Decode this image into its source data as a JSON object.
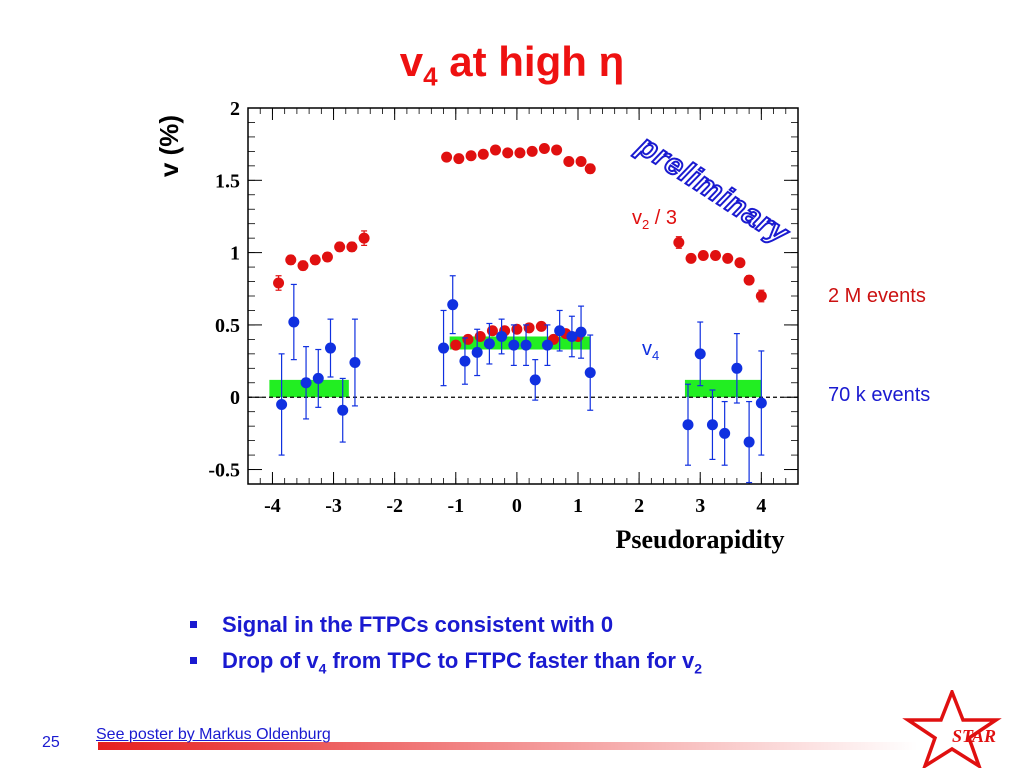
{
  "title": {
    "main": "v",
    "sub": "4",
    "tail": " at high η"
  },
  "chart_data": {
    "type": "scatter",
    "xlabel": "Pseudorapidity",
    "ylabel": "v (%)",
    "xlim": [
      -4.4,
      4.6
    ],
    "ylim": [
      -0.6,
      2.0
    ],
    "x_ticks": [
      -4,
      -3,
      -2,
      -1,
      0,
      1,
      2,
      3,
      4
    ],
    "y_ticks": [
      -0.5,
      0,
      0.5,
      1,
      1.5,
      2
    ],
    "x_tick_labels": [
      "-4",
      "-3",
      "-2",
      "-1",
      "0",
      "1",
      "2",
      "3",
      "4"
    ],
    "y_tick_labels": [
      "-0.5",
      "0",
      "0.5",
      "1",
      "1.5",
      "2"
    ],
    "zero_line": true,
    "watermark": "preliminary",
    "series": [
      {
        "name": "v2 / 3",
        "color": "#e01010",
        "points": [
          {
            "x": -3.9,
            "y": 0.79,
            "err": 0.05
          },
          {
            "x": -3.7,
            "y": 0.95,
            "err": 0.03
          },
          {
            "x": -3.5,
            "y": 0.91,
            "err": 0.03
          },
          {
            "x": -3.3,
            "y": 0.95,
            "err": 0.03
          },
          {
            "x": -3.1,
            "y": 0.97,
            "err": 0.03
          },
          {
            "x": -2.9,
            "y": 1.04,
            "err": 0.03
          },
          {
            "x": -2.7,
            "y": 1.04,
            "err": 0.03
          },
          {
            "x": -2.5,
            "y": 1.1,
            "err": 0.05
          },
          {
            "x": -1.15,
            "y": 1.66,
            "err": 0.02
          },
          {
            "x": -0.95,
            "y": 1.65,
            "err": 0.02
          },
          {
            "x": -0.75,
            "y": 1.67,
            "err": 0.02
          },
          {
            "x": -0.55,
            "y": 1.68,
            "err": 0.02
          },
          {
            "x": -0.35,
            "y": 1.71,
            "err": 0.02
          },
          {
            "x": -0.15,
            "y": 1.69,
            "err": 0.02
          },
          {
            "x": 0.05,
            "y": 1.69,
            "err": 0.02
          },
          {
            "x": 0.25,
            "y": 1.7,
            "err": 0.02
          },
          {
            "x": 0.45,
            "y": 1.72,
            "err": 0.02
          },
          {
            "x": 0.65,
            "y": 1.71,
            "err": 0.02
          },
          {
            "x": 0.85,
            "y": 1.63,
            "err": 0.02
          },
          {
            "x": 1.05,
            "y": 1.63,
            "err": 0.02
          },
          {
            "x": 1.2,
            "y": 1.58,
            "err": 0.03
          },
          {
            "x": 2.65,
            "y": 1.07,
            "err": 0.04
          },
          {
            "x": 2.85,
            "y": 0.96,
            "err": 0.02
          },
          {
            "x": 3.05,
            "y": 0.98,
            "err": 0.02
          },
          {
            "x": 3.25,
            "y": 0.98,
            "err": 0.02
          },
          {
            "x": 3.45,
            "y": 0.96,
            "err": 0.02
          },
          {
            "x": 3.65,
            "y": 0.93,
            "err": 0.02
          },
          {
            "x": 3.8,
            "y": 0.81,
            "err": 0.03
          },
          {
            "x": 4.0,
            "y": 0.7,
            "err": 0.04
          },
          {
            "x": -1.0,
            "y": 0.36,
            "err": 0.02
          },
          {
            "x": -0.8,
            "y": 0.4,
            "err": 0.02
          },
          {
            "x": -0.6,
            "y": 0.42,
            "err": 0.02
          },
          {
            "x": -0.4,
            "y": 0.46,
            "err": 0.02
          },
          {
            "x": -0.2,
            "y": 0.46,
            "err": 0.02
          },
          {
            "x": 0.0,
            "y": 0.47,
            "err": 0.02
          },
          {
            "x": 0.2,
            "y": 0.48,
            "err": 0.02
          },
          {
            "x": 0.4,
            "y": 0.49,
            "err": 0.02
          },
          {
            "x": 0.6,
            "y": 0.4,
            "err": 0.02
          },
          {
            "x": 0.8,
            "y": 0.44,
            "err": 0.02
          },
          {
            "x": 1.0,
            "y": 0.42,
            "err": 0.02
          }
        ]
      },
      {
        "name": "v4",
        "color": "#1030e0",
        "points": [
          {
            "x": -3.85,
            "y": -0.05,
            "err": 0.35
          },
          {
            "x": -3.65,
            "y": 0.52,
            "err": 0.26
          },
          {
            "x": -3.45,
            "y": 0.1,
            "err": 0.25
          },
          {
            "x": -3.25,
            "y": 0.13,
            "err": 0.2
          },
          {
            "x": -3.05,
            "y": 0.34,
            "err": 0.2
          },
          {
            "x": -2.85,
            "y": -0.09,
            "err": 0.22
          },
          {
            "x": -2.65,
            "y": 0.24,
            "err": 0.3
          },
          {
            "x": -1.2,
            "y": 0.34,
            "err": 0.26
          },
          {
            "x": -1.05,
            "y": 0.64,
            "err": 0.2
          },
          {
            "x": -0.85,
            "y": 0.25,
            "err": 0.16
          },
          {
            "x": -0.65,
            "y": 0.31,
            "err": 0.16
          },
          {
            "x": -0.45,
            "y": 0.37,
            "err": 0.14
          },
          {
            "x": -0.25,
            "y": 0.42,
            "err": 0.12
          },
          {
            "x": -0.05,
            "y": 0.36,
            "err": 0.14
          },
          {
            "x": 0.15,
            "y": 0.36,
            "err": 0.14
          },
          {
            "x": 0.3,
            "y": 0.12,
            "err": 0.14
          },
          {
            "x": 0.5,
            "y": 0.36,
            "err": 0.14
          },
          {
            "x": 0.7,
            "y": 0.46,
            "err": 0.14
          },
          {
            "x": 0.9,
            "y": 0.42,
            "err": 0.14
          },
          {
            "x": 1.05,
            "y": 0.45,
            "err": 0.18
          },
          {
            "x": 1.2,
            "y": 0.17,
            "err": 0.26
          },
          {
            "x": 2.8,
            "y": -0.19,
            "err": 0.28
          },
          {
            "x": 3.0,
            "y": 0.3,
            "err": 0.22
          },
          {
            "x": 3.2,
            "y": -0.19,
            "err": 0.24
          },
          {
            "x": 3.4,
            "y": -0.25,
            "err": 0.22
          },
          {
            "x": 3.6,
            "y": 0.2,
            "err": 0.24
          },
          {
            "x": 3.8,
            "y": -0.31,
            "err": 0.28
          },
          {
            "x": 4.0,
            "y": -0.04,
            "err": 0.36
          }
        ]
      }
    ],
    "systematic_bands": [
      {
        "x0": -4.05,
        "x1": -2.75,
        "y0": 0.0,
        "y1": 0.12,
        "color": "#22ee22"
      },
      {
        "x0": -1.1,
        "x1": 1.2,
        "y0": 0.33,
        "y1": 0.42,
        "color": "#22ee22"
      },
      {
        "x0": 2.75,
        "x1": 4.0,
        "y0": 0.0,
        "y1": 0.12,
        "color": "#22ee22"
      }
    ],
    "annotations": [
      {
        "text_main": "v",
        "text_sub": "2",
        "text_tail": " / 3",
        "color": "#e01010"
      },
      {
        "text_main": "v",
        "text_sub": "4",
        "text_tail": "",
        "color": "#1030e0"
      }
    ]
  },
  "side_labels": {
    "v2_events": "2 M events",
    "v4_events": "70 k events",
    "v2_color": "#cc1111",
    "v4_color": "#1a1ad0"
  },
  "bullets": [
    {
      "main": "Signal in the FTPCs consistent with 0"
    },
    {
      "pre": "Drop of v",
      "sub1": "4",
      "mid": " from TPC to FTPC faster than for v",
      "sub2": "2"
    }
  ],
  "footer": {
    "page_number": "25",
    "link_text": "See poster by Markus Oldenburg",
    "logo_text": "STAR"
  }
}
